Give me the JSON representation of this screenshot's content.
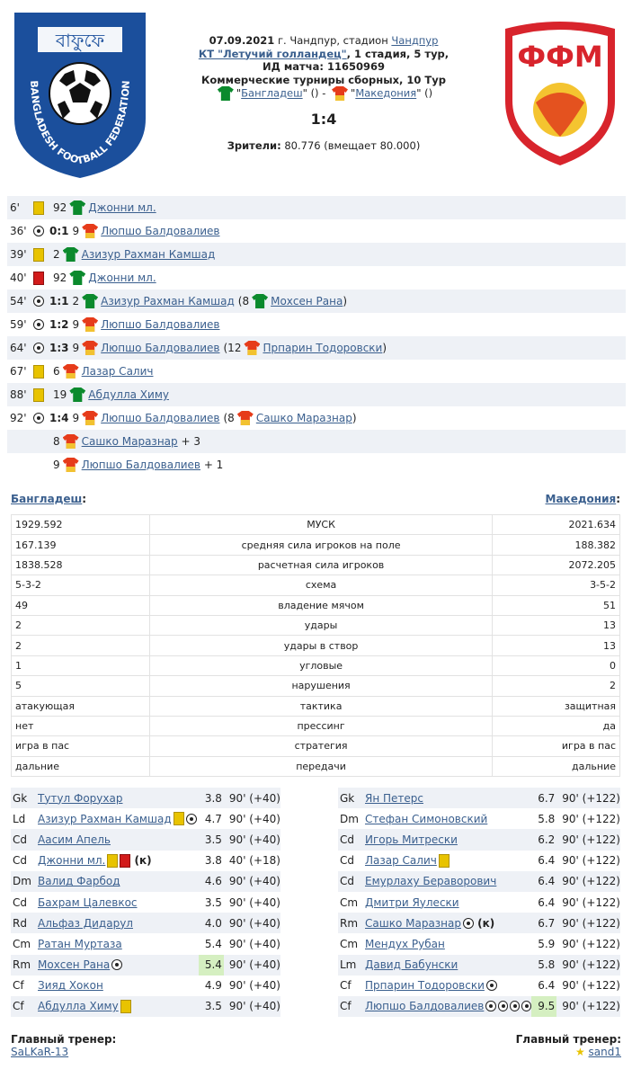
{
  "match": {
    "date_line": "07.09.2021",
    "place_prefix": "г. Чандпур, стадион",
    "stadium": "Чандпур",
    "tournament": "КТ \"Летучий голландец\"",
    "stage": ", 1 стадия, 5 тур,",
    "match_id": "ИД матча: 11650969",
    "series": "Коммерческие турниры сборных, 10 Тур",
    "home": "Бангладеш",
    "away": "Македония",
    "home_suffix": "\" () -",
    "away_suffix": "\" ()",
    "score": "1:4",
    "spectators_label": "Зрители:",
    "spectators": "80.776 (вмещает 80.000)"
  },
  "logos": {
    "left_text": "BANGLADESH FOOTBALL FEDERATION",
    "right_text": "ФФМ"
  },
  "events": [
    {
      "min": "6'",
      "icon": "yellow-card",
      "score": "",
      "num": "92",
      "team": "home",
      "player": "Джонни мл.",
      "extra": ""
    },
    {
      "min": "36'",
      "icon": "goal",
      "score": "0:1",
      "num": "9",
      "team": "away",
      "player": "Люпшо Балдовалиев",
      "extra": ""
    },
    {
      "min": "39'",
      "icon": "yellow-card",
      "score": "",
      "num": "2",
      "team": "home",
      "player": "Азизур Рахман Камшад",
      "extra": ""
    },
    {
      "min": "40'",
      "icon": "red-card",
      "score": "",
      "num": "92",
      "team": "home",
      "player": "Джонни мл.",
      "extra": ""
    },
    {
      "min": "54'",
      "icon": "goal",
      "score": "1:1",
      "num": "2",
      "team": "home",
      "player": "Азизур Рахман Камшад",
      "extra_num": "(8",
      "extra_team": "home",
      "extra_player": "Мохсен Рана",
      "extra_close": ")"
    },
    {
      "min": "59'",
      "icon": "goal",
      "score": "1:2",
      "num": "9",
      "team": "away",
      "player": "Люпшо Балдовалиев",
      "extra": ""
    },
    {
      "min": "64'",
      "icon": "goal",
      "score": "1:3",
      "num": "9",
      "team": "away",
      "player": "Люпшо Балдовалиев",
      "extra_num": "(12",
      "extra_team": "away",
      "extra_player": "Прпарин Тодоровски",
      "extra_close": ")"
    },
    {
      "min": "67'",
      "icon": "yellow-card",
      "score": "",
      "num": "6",
      "team": "away",
      "player": "Лазар Салич",
      "extra": ""
    },
    {
      "min": "88'",
      "icon": "yellow-card",
      "score": "",
      "num": "19",
      "team": "home",
      "player": "Абдулла Химу",
      "extra": ""
    },
    {
      "min": "92'",
      "icon": "goal",
      "score": "1:4",
      "num": "9",
      "team": "away",
      "player": "Люпшо Балдовалиев",
      "extra_num": "(8",
      "extra_team": "away",
      "extra_player": "Сашко Маразнар",
      "extra_close": ")"
    },
    {
      "min": "",
      "icon": "assist",
      "score": "",
      "num": "8",
      "team": "away",
      "player": "Сашко Маразнар",
      "extra": "+ 3"
    },
    {
      "min": "",
      "icon": "assist",
      "score": "",
      "num": "9",
      "team": "away",
      "player": "Люпшо Балдовалиев",
      "extra": "+ 1"
    }
  ],
  "teams": {
    "home": "Бангладеш",
    "away": "Македония",
    "colon": ":"
  },
  "stats": [
    [
      "1929.592",
      "МУСК",
      "2021.634"
    ],
    [
      "167.139",
      "средняя сила игроков на поле",
      "188.382"
    ],
    [
      "1838.528",
      "расчетная сила игроков",
      "2072.205"
    ],
    [
      "5-3-2",
      "схема",
      "3-5-2"
    ],
    [
      "49",
      "владение мячом",
      "51"
    ],
    [
      "2",
      "удары",
      "13"
    ],
    [
      "2",
      "удары в створ",
      "13"
    ],
    [
      "1",
      "угловые",
      "0"
    ],
    [
      "5",
      "нарушения",
      "2"
    ],
    [
      "атакующая",
      "тактика",
      "защитная"
    ],
    [
      "нет",
      "прессинг",
      "да"
    ],
    [
      "игра в пас",
      "стратегия",
      "игра в пас"
    ],
    [
      "дальние",
      "передачи",
      "дальние"
    ]
  ],
  "lineup_home": [
    {
      "pos": "Gk",
      "name": "Тутул Форухар",
      "marks": [],
      "rating": "3.8",
      "time": "90' (+40)"
    },
    {
      "pos": "Ld",
      "name": "Азизур Рахман Камшад",
      "marks": [
        "yellow-card",
        "goal"
      ],
      "rating": "4.7",
      "time": "90' (+40)"
    },
    {
      "pos": "Cd",
      "name": "Аасим Апель",
      "marks": [],
      "rating": "3.5",
      "time": "90' (+40)"
    },
    {
      "pos": "Cd",
      "name": "Джонни мл.",
      "marks": [
        "yellow-card",
        "red-card"
      ],
      "captain": "(к)",
      "rating": "3.8",
      "time": "40' (+18)"
    },
    {
      "pos": "Dm",
      "name": "Валид Фарбод",
      "marks": [],
      "rating": "4.6",
      "time": "90' (+40)"
    },
    {
      "pos": "Cd",
      "name": "Бахрам Цалевкос",
      "marks": [],
      "rating": "3.5",
      "time": "90' (+40)"
    },
    {
      "pos": "Rd",
      "name": "Альфаз Дидарул",
      "marks": [],
      "rating": "4.0",
      "time": "90' (+40)"
    },
    {
      "pos": "Cm",
      "name": "Ратан Муртаза",
      "marks": [],
      "rating": "5.4",
      "time": "90' (+40)"
    },
    {
      "pos": "Rm",
      "name": "Мохсен Рана",
      "marks": [
        "goal"
      ],
      "rating": "5.4",
      "time": "90' (+40)",
      "best": true
    },
    {
      "pos": "Cf",
      "name": "Зияд Хокон",
      "marks": [],
      "rating": "4.9",
      "time": "90' (+40)"
    },
    {
      "pos": "Cf",
      "name": "Абдулла Химу",
      "marks": [
        "yellow-card"
      ],
      "rating": "3.5",
      "time": "90' (+40)"
    }
  ],
  "lineup_away": [
    {
      "pos": "Gk",
      "name": "Ян Петерс",
      "marks": [],
      "rating": "6.7",
      "time": "90' (+122)"
    },
    {
      "pos": "Dm",
      "name": "Стефан Симоновский",
      "marks": [],
      "rating": "5.8",
      "time": "90' (+122)"
    },
    {
      "pos": "Cd",
      "name": "Игорь Митрески",
      "marks": [],
      "rating": "6.2",
      "time": "90' (+122)"
    },
    {
      "pos": "Cd",
      "name": "Лазар Салич",
      "marks": [
        "yellow-card"
      ],
      "rating": "6.4",
      "time": "90' (+122)"
    },
    {
      "pos": "Cd",
      "name": "Емурлаху Бераворович",
      "marks": [],
      "rating": "6.4",
      "time": "90' (+122)"
    },
    {
      "pos": "Cm",
      "name": "Дмитри Яулески",
      "marks": [],
      "rating": "6.4",
      "time": "90' (+122)"
    },
    {
      "pos": "Rm",
      "name": "Сашко Маразнар",
      "marks": [
        "goal"
      ],
      "captain": "(к)",
      "rating": "6.7",
      "time": "90' (+122)"
    },
    {
      "pos": "Cm",
      "name": "Мендух Рубан",
      "marks": [],
      "rating": "5.9",
      "time": "90' (+122)"
    },
    {
      "pos": "Lm",
      "name": "Давид Бабунски",
      "marks": [],
      "rating": "5.8",
      "time": "90' (+122)"
    },
    {
      "pos": "Cf",
      "name": "Прпарин Тодоровски",
      "marks": [
        "goal"
      ],
      "rating": "6.4",
      "time": "90' (+122)"
    },
    {
      "pos": "Cf",
      "name": "Люпшо Балдовалиев",
      "marks": [
        "goal",
        "goal",
        "goal",
        "goal"
      ],
      "rating": "9.5",
      "time": "90' (+122)",
      "best": true
    }
  ],
  "coach": {
    "label": "Главный тренер:",
    "home": "SaLKaR-13",
    "away": "sand1"
  },
  "colors": {
    "home_shirt": "#0b8a2d",
    "away_shirt": "#e63b1a",
    "link": "#3a5f8e",
    "row_alt": "#eef1f6",
    "highlight": "#d5efc1"
  }
}
